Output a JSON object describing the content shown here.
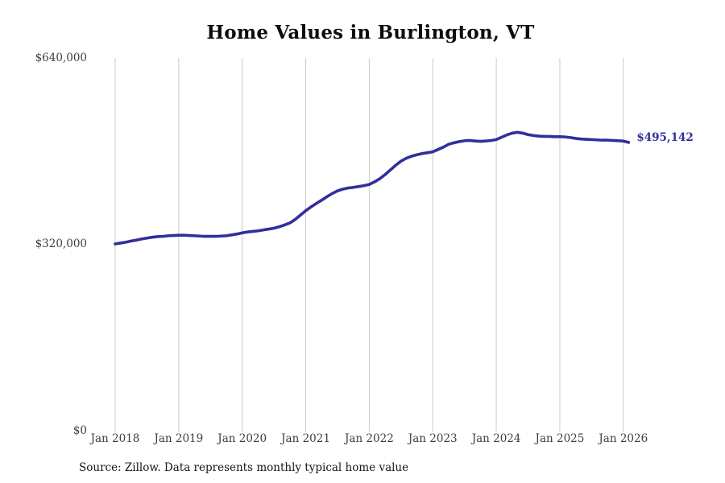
{
  "title": "Home Values in Burlington, VT",
  "source_note": "Source: Zillow. Data represents monthly typical home value",
  "colors": {
    "line": "#322e9b",
    "end_label_text": "#322e9b",
    "grid": "#cacaca",
    "axis_text": "#3d3d3d",
    "title_text": "#0d0d0d"
  },
  "chart_data": {
    "type": "line",
    "title": "Home Values in Burlington, VT",
    "xlabel": "",
    "ylabel": "",
    "ylim": [
      0,
      640000
    ],
    "grid": "vertical-only",
    "legend": "none",
    "x_start_month": "2018-01",
    "x_end_month": "2026-02",
    "x_tick_labels": [
      "Jan 2018",
      "Jan 2019",
      "Jan 2020",
      "Jan 2021",
      "Jan 2022",
      "Jan 2023",
      "Jan 2024",
      "Jan 2025",
      "Jan 2026"
    ],
    "y_tick_labels": [
      "$0",
      "$320,000",
      "$640,000"
    ],
    "final_value": 495142,
    "final_value_label": "$495,142",
    "series": [
      {
        "name": "Typical home value (monthly)",
        "monthly_values": [
          321000,
          322500,
          324000,
          326000,
          327500,
          329500,
          331000,
          332500,
          333500,
          334000,
          335000,
          335500,
          336000,
          336000,
          335500,
          335000,
          334500,
          334000,
          334000,
          334000,
          334500,
          335000,
          336500,
          338000,
          340000,
          341500,
          342500,
          343500,
          345000,
          346500,
          348000,
          350500,
          353500,
          357000,
          363000,
          370500,
          378000,
          384500,
          390500,
          396000,
          402000,
          407500,
          412000,
          415000,
          417000,
          418000,
          419500,
          421000,
          423000,
          427500,
          433000,
          440000,
          448000,
          456000,
          463000,
          468000,
          471500,
          474000,
          476000,
          477500,
          479000,
          483000,
          487000,
          492000,
          494500,
          496500,
          498000,
          498500,
          497500,
          497000,
          497500,
          498500,
          500000,
          504000,
          508000,
          511000,
          512500,
          511000,
          508500,
          507000,
          506000,
          505500,
          505500,
          505000,
          505000,
          504500,
          503500,
          502000,
          501000,
          500500,
          500000,
          499500,
          499000,
          499000,
          498500,
          498000,
          497500,
          495142
        ]
      }
    ]
  }
}
